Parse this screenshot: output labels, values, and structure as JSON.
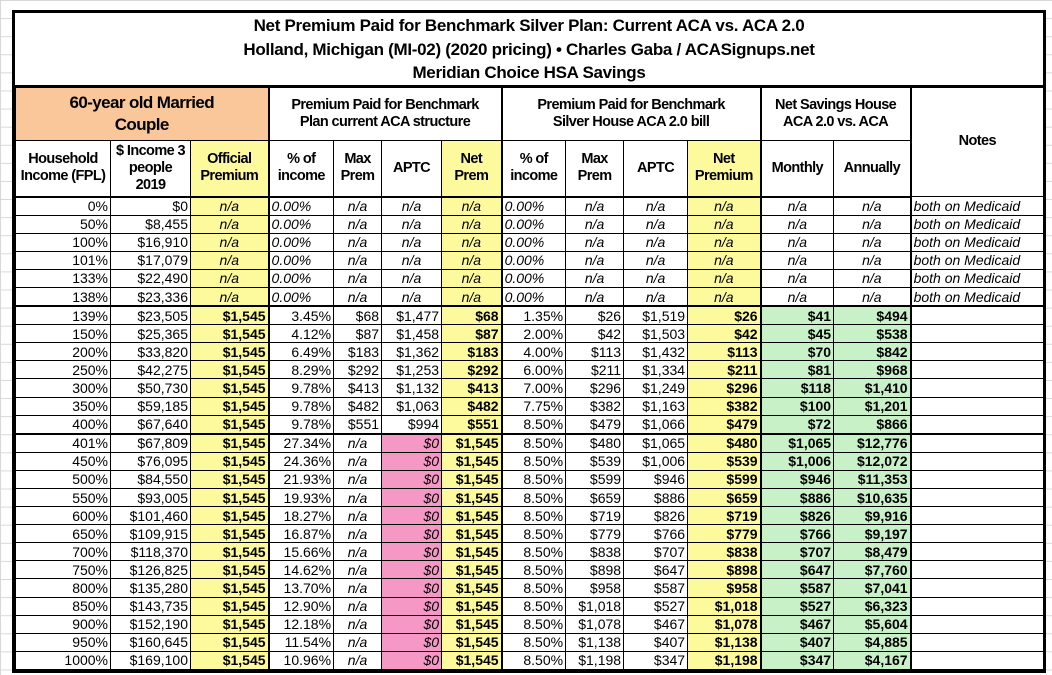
{
  "title": {
    "line1": "Net Premium Paid for Benchmark Silver Plan: Current ACA vs. ACA 2.0",
    "line2": "Holland, Michigan (MI-02) (2020 pricing) • Charles Gaba / ACASignups.net",
    "line3": "Meridian Choice HSA Savings"
  },
  "groups": {
    "household": "60-year old Married Couple",
    "current": "Premium Paid for Benchmark Plan current ACA structure",
    "house": "Premium Paid for Benchmark Silver House ACA 2.0 bill",
    "savings": "Net Savings House ACA 2.0 vs. ACA",
    "notes": "Notes"
  },
  "columns": [
    "Household Income (FPL)",
    "$ Income 3 people 2019",
    "Official Premium",
    "% of income",
    "Max Prem",
    "APTC",
    "Net Prem",
    "% of income",
    "Max Prem",
    "APTC",
    "Net Premium",
    "Monthly",
    "Annually"
  ],
  "colors": {
    "official_premium": "#fdfa9d",
    "net_premium": "#fdfa9d",
    "savings": "#c9f1c8",
    "aptc_zero": "#f598c6",
    "household_header": "#f9c79a"
  },
  "rows": [
    [
      "0%",
      "$0",
      "n/a",
      "0.00%",
      "n/a",
      "n/a",
      "n/a",
      "0.00%",
      "n/a",
      "n/a",
      "n/a",
      "n/a",
      "n/a",
      "both on Medicaid"
    ],
    [
      "50%",
      "$8,455",
      "n/a",
      "0.00%",
      "n/a",
      "n/a",
      "n/a",
      "0.00%",
      "n/a",
      "n/a",
      "n/a",
      "n/a",
      "n/a",
      "both on Medicaid"
    ],
    [
      "100%",
      "$16,910",
      "n/a",
      "0.00%",
      "n/a",
      "n/a",
      "n/a",
      "0.00%",
      "n/a",
      "n/a",
      "n/a",
      "n/a",
      "n/a",
      "both on Medicaid"
    ],
    [
      "101%",
      "$17,079",
      "n/a",
      "0.00%",
      "n/a",
      "n/a",
      "n/a",
      "0.00%",
      "n/a",
      "n/a",
      "n/a",
      "n/a",
      "n/a",
      "both on Medicaid"
    ],
    [
      "133%",
      "$22,490",
      "n/a",
      "0.00%",
      "n/a",
      "n/a",
      "n/a",
      "0.00%",
      "n/a",
      "n/a",
      "n/a",
      "n/a",
      "n/a",
      "both on Medicaid"
    ],
    [
      "138%",
      "$23,336",
      "n/a",
      "0.00%",
      "n/a",
      "n/a",
      "n/a",
      "0.00%",
      "n/a",
      "n/a",
      "n/a",
      "n/a",
      "n/a",
      "both on Medicaid"
    ],
    [
      "139%",
      "$23,505",
      "$1,545",
      "3.45%",
      "$68",
      "$1,477",
      "$68",
      "1.35%",
      "$26",
      "$1,519",
      "$26",
      "$41",
      "$494",
      ""
    ],
    [
      "150%",
      "$25,365",
      "$1,545",
      "4.12%",
      "$87",
      "$1,458",
      "$87",
      "2.00%",
      "$42",
      "$1,503",
      "$42",
      "$45",
      "$538",
      ""
    ],
    [
      "200%",
      "$33,820",
      "$1,545",
      "6.49%",
      "$183",
      "$1,362",
      "$183",
      "4.00%",
      "$113",
      "$1,432",
      "$113",
      "$70",
      "$842",
      ""
    ],
    [
      "250%",
      "$42,275",
      "$1,545",
      "8.29%",
      "$292",
      "$1,253",
      "$292",
      "6.00%",
      "$211",
      "$1,334",
      "$211",
      "$81",
      "$968",
      ""
    ],
    [
      "300%",
      "$50,730",
      "$1,545",
      "9.78%",
      "$413",
      "$1,132",
      "$413",
      "7.00%",
      "$296",
      "$1,249",
      "$296",
      "$118",
      "$1,410",
      ""
    ],
    [
      "350%",
      "$59,185",
      "$1,545",
      "9.78%",
      "$482",
      "$1,063",
      "$482",
      "7.75%",
      "$382",
      "$1,163",
      "$382",
      "$100",
      "$1,201",
      ""
    ],
    [
      "400%",
      "$67,640",
      "$1,545",
      "9.78%",
      "$551",
      "$994",
      "$551",
      "8.50%",
      "$479",
      "$1,066",
      "$479",
      "$72",
      "$866",
      ""
    ],
    [
      "401%",
      "$67,809",
      "$1,545",
      "27.34%",
      "n/a",
      "$0",
      "$1,545",
      "8.50%",
      "$480",
      "$1,065",
      "$480",
      "$1,065",
      "$12,776",
      ""
    ],
    [
      "450%",
      "$76,095",
      "$1,545",
      "24.36%",
      "n/a",
      "$0",
      "$1,545",
      "8.50%",
      "$539",
      "$1,006",
      "$539",
      "$1,006",
      "$12,072",
      ""
    ],
    [
      "500%",
      "$84,550",
      "$1,545",
      "21.93%",
      "n/a",
      "$0",
      "$1,545",
      "8.50%",
      "$599",
      "$946",
      "$599",
      "$946",
      "$11,353",
      ""
    ],
    [
      "550%",
      "$93,005",
      "$1,545",
      "19.93%",
      "n/a",
      "$0",
      "$1,545",
      "8.50%",
      "$659",
      "$886",
      "$659",
      "$886",
      "$10,635",
      ""
    ],
    [
      "600%",
      "$101,460",
      "$1,545",
      "18.27%",
      "n/a",
      "$0",
      "$1,545",
      "8.50%",
      "$719",
      "$826",
      "$719",
      "$826",
      "$9,916",
      ""
    ],
    [
      "650%",
      "$109,915",
      "$1,545",
      "16.87%",
      "n/a",
      "$0",
      "$1,545",
      "8.50%",
      "$779",
      "$766",
      "$779",
      "$766",
      "$9,197",
      ""
    ],
    [
      "700%",
      "$118,370",
      "$1,545",
      "15.66%",
      "n/a",
      "$0",
      "$1,545",
      "8.50%",
      "$838",
      "$707",
      "$838",
      "$707",
      "$8,479",
      ""
    ],
    [
      "750%",
      "$126,825",
      "$1,545",
      "14.62%",
      "n/a",
      "$0",
      "$1,545",
      "8.50%",
      "$898",
      "$647",
      "$898",
      "$647",
      "$7,760",
      ""
    ],
    [
      "800%",
      "$135,280",
      "$1,545",
      "13.70%",
      "n/a",
      "$0",
      "$1,545",
      "8.50%",
      "$958",
      "$587",
      "$958",
      "$587",
      "$7,041",
      ""
    ],
    [
      "850%",
      "$143,735",
      "$1,545",
      "12.90%",
      "n/a",
      "$0",
      "$1,545",
      "8.50%",
      "$1,018",
      "$527",
      "$1,018",
      "$527",
      "$6,323",
      ""
    ],
    [
      "900%",
      "$152,190",
      "$1,545",
      "12.18%",
      "n/a",
      "$0",
      "$1,545",
      "8.50%",
      "$1,078",
      "$467",
      "$1,078",
      "$467",
      "$5,604",
      ""
    ],
    [
      "950%",
      "$160,645",
      "$1,545",
      "11.54%",
      "n/a",
      "$0",
      "$1,545",
      "8.50%",
      "$1,138",
      "$407",
      "$1,138",
      "$407",
      "$4,885",
      ""
    ],
    [
      "1000%",
      "$169,100",
      "$1,545",
      "10.96%",
      "n/a",
      "$0",
      "$1,545",
      "8.50%",
      "$1,198",
      "$347",
      "$1,198",
      "$347",
      "$4,167",
      ""
    ]
  ]
}
